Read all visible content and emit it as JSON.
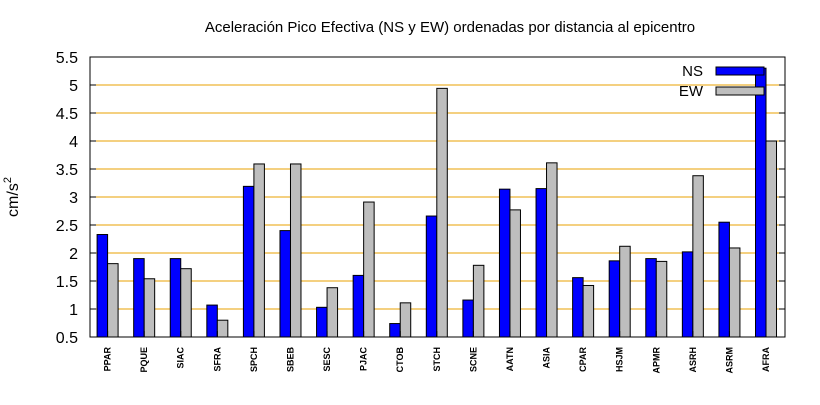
{
  "chart_data": {
    "type": "bar",
    "title": "Aceleración Pico Efectiva (NS y EW) ordenadas por distancia al epicentro",
    "xlabel": "",
    "ylabel": "cm/s",
    "ylabel_superscript": "2",
    "ylim": [
      0.5,
      5.5
    ],
    "yticks": [
      "0.5",
      "1",
      "1.5",
      "2",
      "2.5",
      "3",
      "3.5",
      "4",
      "4.5",
      "5",
      "5.5"
    ],
    "grid": "horizontal",
    "legend_position": "top-right",
    "categories": [
      "PPAR",
      "PQUE",
      "SIAC",
      "SFRA",
      "SPCH",
      "SBEB",
      "SESC",
      "PJAC",
      "CTOB",
      "STCH",
      "SCNE",
      "AATN",
      "ASIA",
      "CPAR",
      "HSJM",
      "APMR",
      "ASRH",
      "ASRM",
      "AFRA"
    ],
    "series": [
      {
        "name": "NS",
        "color": "#0000ff",
        "values": [
          2.33,
          1.9,
          1.9,
          1.07,
          3.19,
          2.4,
          1.03,
          1.6,
          0.74,
          2.66,
          1.16,
          3.14,
          3.15,
          1.56,
          1.86,
          1.9,
          2.02,
          2.55,
          5.3
        ]
      },
      {
        "name": "EW",
        "color": "#bebebe",
        "values": [
          1.81,
          1.54,
          1.72,
          0.8,
          3.59,
          3.59,
          1.38,
          2.91,
          1.11,
          4.94,
          1.78,
          2.77,
          3.61,
          1.42,
          2.12,
          1.85,
          3.38,
          2.09,
          4.0
        ]
      }
    ],
    "gridline_color": "#e8a000"
  }
}
